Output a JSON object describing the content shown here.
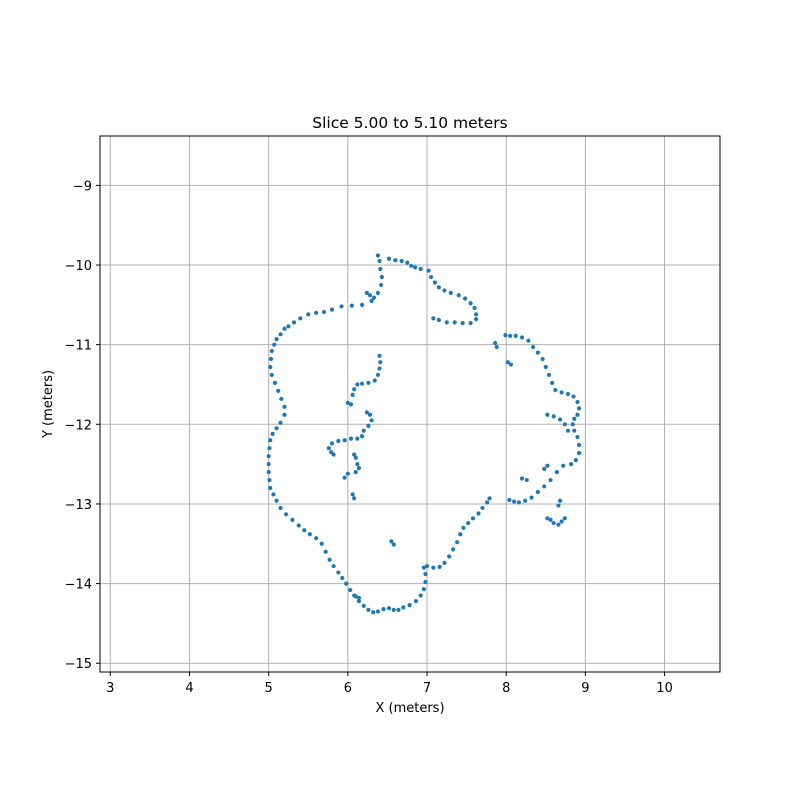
{
  "chart_data": {
    "type": "scatter",
    "title": "Slice 5.00 to 5.10 meters",
    "xlabel": "X (meters)",
    "ylabel": "Y (meters)",
    "xlim": [
      2.87,
      10.7
    ],
    "ylim": [
      -15.11,
      -8.38
    ],
    "xticks": [
      3,
      4,
      5,
      6,
      7,
      8,
      9,
      10
    ],
    "yticks": [
      -15,
      -14,
      -13,
      -12,
      -11,
      -10,
      -9
    ],
    "grid": true,
    "marker_color": "#1f77b4",
    "grid_color": "#b0b0b0",
    "series": [
      {
        "points": [
          [
            6.38,
            -9.88
          ],
          [
            6.4,
            -9.95
          ],
          [
            6.41,
            -10.05
          ],
          [
            6.43,
            -10.15
          ],
          [
            6.42,
            -10.25
          ],
          [
            6.38,
            -10.35
          ],
          [
            6.3,
            -10.45
          ],
          [
            6.18,
            -10.5
          ],
          [
            6.05,
            -10.51
          ],
          [
            5.92,
            -10.52
          ],
          [
            5.8,
            -10.56
          ],
          [
            5.7,
            -10.59
          ],
          [
            5.6,
            -10.6
          ],
          [
            5.5,
            -10.62
          ],
          [
            5.4,
            -10.67
          ],
          [
            5.32,
            -10.72
          ],
          [
            5.25,
            -10.77
          ],
          [
            5.2,
            -10.8
          ],
          [
            5.15,
            -10.87
          ],
          [
            5.1,
            -10.93
          ],
          [
            5.07,
            -11.0
          ],
          [
            5.04,
            -11.08
          ],
          [
            5.03,
            -11.18
          ],
          [
            5.02,
            -11.28
          ],
          [
            5.04,
            -11.38
          ],
          [
            5.08,
            -11.48
          ],
          [
            5.12,
            -11.58
          ],
          [
            5.16,
            -11.68
          ],
          [
            5.2,
            -11.78
          ],
          [
            5.2,
            -11.88
          ],
          [
            5.15,
            -11.98
          ],
          [
            5.1,
            -12.05
          ],
          [
            5.05,
            -12.12
          ],
          [
            5.02,
            -12.2
          ],
          [
            5.01,
            -12.3
          ],
          [
            5.0,
            -12.4
          ],
          [
            5.0,
            -12.5
          ],
          [
            5.0,
            -12.6
          ],
          [
            5.01,
            -12.7
          ],
          [
            5.02,
            -12.8
          ],
          [
            5.06,
            -12.88
          ],
          [
            5.1,
            -12.96
          ],
          [
            5.15,
            -13.05
          ],
          [
            5.22,
            -13.13
          ],
          [
            5.3,
            -13.2
          ],
          [
            5.38,
            -13.27
          ],
          [
            5.45,
            -13.33
          ],
          [
            5.52,
            -13.38
          ],
          [
            5.6,
            -13.43
          ],
          [
            5.67,
            -13.5
          ],
          [
            5.72,
            -13.6
          ],
          [
            5.77,
            -13.7
          ],
          [
            5.82,
            -13.78
          ],
          [
            5.88,
            -13.86
          ],
          [
            5.93,
            -13.93
          ],
          [
            5.98,
            -14.0
          ],
          [
            6.03,
            -14.08
          ],
          [
            6.08,
            -14.15
          ],
          [
            6.14,
            -14.22
          ],
          [
            6.2,
            -14.28
          ],
          [
            6.26,
            -14.33
          ],
          [
            6.32,
            -14.36
          ],
          [
            6.38,
            -14.35
          ],
          [
            6.45,
            -14.32
          ],
          [
            6.52,
            -14.31
          ],
          [
            6.58,
            -14.33
          ],
          [
            6.64,
            -14.33
          ],
          [
            6.7,
            -14.3
          ],
          [
            6.78,
            -14.27
          ],
          [
            6.86,
            -14.22
          ],
          [
            6.92,
            -14.15
          ],
          [
            6.96,
            -14.07
          ],
          [
            6.98,
            -13.98
          ],
          [
            6.98,
            -13.88
          ],
          [
            6.96,
            -13.8
          ],
          [
            6.52,
            -9.92
          ],
          [
            6.6,
            -9.94
          ],
          [
            6.68,
            -9.95
          ],
          [
            6.75,
            -9.97
          ],
          [
            6.8,
            -10.01
          ],
          [
            6.85,
            -10.03
          ],
          [
            6.92,
            -10.05
          ],
          [
            7.02,
            -10.07
          ],
          [
            7.05,
            -10.15
          ],
          [
            7.1,
            -10.22
          ],
          [
            7.15,
            -10.28
          ],
          [
            7.22,
            -10.32
          ],
          [
            7.3,
            -10.35
          ],
          [
            7.4,
            -10.38
          ],
          [
            7.48,
            -10.42
          ],
          [
            7.55,
            -10.48
          ],
          [
            7.6,
            -10.54
          ],
          [
            7.62,
            -10.62
          ],
          [
            7.62,
            -10.68
          ],
          [
            7.55,
            -10.73
          ],
          [
            7.45,
            -10.73
          ],
          [
            7.35,
            -10.72
          ],
          [
            7.25,
            -10.72
          ],
          [
            7.15,
            -10.69
          ],
          [
            7.08,
            -10.67
          ],
          [
            6.24,
            -10.35
          ],
          [
            6.28,
            -10.38
          ],
          [
            6.33,
            -10.41
          ],
          [
            7.0,
            -13.78
          ],
          [
            7.08,
            -13.8
          ],
          [
            7.16,
            -13.79
          ],
          [
            7.22,
            -13.74
          ],
          [
            7.28,
            -13.66
          ],
          [
            7.33,
            -13.57
          ],
          [
            7.38,
            -13.48
          ],
          [
            7.42,
            -13.38
          ],
          [
            7.46,
            -13.3
          ],
          [
            7.52,
            -13.24
          ],
          [
            7.58,
            -13.18
          ],
          [
            7.65,
            -13.12
          ],
          [
            7.7,
            -13.05
          ],
          [
            7.76,
            -12.98
          ],
          [
            7.79,
            -12.93
          ],
          [
            6.55,
            -13.47
          ],
          [
            6.58,
            -13.51
          ],
          [
            7.99,
            -10.88
          ],
          [
            8.05,
            -10.89
          ],
          [
            8.12,
            -10.89
          ],
          [
            8.2,
            -10.91
          ],
          [
            8.28,
            -10.95
          ],
          [
            8.34,
            -11.03
          ],
          [
            8.4,
            -11.1
          ],
          [
            8.46,
            -11.18
          ],
          [
            8.5,
            -11.28
          ],
          [
            8.54,
            -11.38
          ],
          [
            8.58,
            -11.48
          ],
          [
            8.62,
            -11.57
          ],
          [
            8.7,
            -11.6
          ],
          [
            8.78,
            -11.62
          ],
          [
            8.85,
            -11.65
          ],
          [
            8.9,
            -11.72
          ],
          [
            8.92,
            -11.8
          ],
          [
            8.9,
            -11.88
          ],
          [
            8.86,
            -11.93
          ],
          [
            8.84,
            -12.0
          ],
          [
            8.86,
            -12.08
          ],
          [
            8.9,
            -12.16
          ],
          [
            8.92,
            -12.26
          ],
          [
            8.92,
            -12.36
          ],
          [
            8.88,
            -12.45
          ],
          [
            8.82,
            -12.5
          ],
          [
            8.72,
            -12.52
          ],
          [
            8.64,
            -12.6
          ],
          [
            8.56,
            -12.7
          ],
          [
            8.48,
            -12.78
          ],
          [
            8.4,
            -12.85
          ],
          [
            8.32,
            -12.92
          ],
          [
            8.24,
            -12.96
          ],
          [
            8.16,
            -12.98
          ],
          [
            8.1,
            -12.97
          ],
          [
            8.04,
            -12.95
          ],
          [
            8.52,
            -11.88
          ],
          [
            8.6,
            -11.9
          ],
          [
            8.68,
            -11.94
          ],
          [
            8.74,
            -12.0
          ],
          [
            8.78,
            -12.08
          ],
          [
            7.86,
            -10.98
          ],
          [
            7.88,
            -11.03
          ],
          [
            8.02,
            -11.22
          ],
          [
            8.06,
            -11.25
          ],
          [
            8.52,
            -13.18
          ],
          [
            8.56,
            -13.2
          ],
          [
            8.6,
            -13.24
          ],
          [
            8.66,
            -13.26
          ],
          [
            8.7,
            -13.22
          ],
          [
            8.74,
            -13.18
          ],
          [
            8.52,
            -12.52
          ],
          [
            8.48,
            -12.56
          ],
          [
            8.2,
            -12.68
          ],
          [
            8.26,
            -12.7
          ],
          [
            8.68,
            -12.96
          ],
          [
            8.66,
            -13.02
          ],
          [
            6.4,
            -11.14
          ],
          [
            6.41,
            -11.22
          ],
          [
            6.4,
            -11.3
          ],
          [
            6.38,
            -11.38
          ],
          [
            6.34,
            -11.45
          ],
          [
            6.26,
            -11.48
          ],
          [
            6.18,
            -11.49
          ],
          [
            6.12,
            -11.5
          ],
          [
            6.08,
            -11.56
          ],
          [
            6.06,
            -11.63
          ],
          [
            6.0,
            -11.73
          ],
          [
            6.04,
            -11.75
          ],
          [
            6.24,
            -11.85
          ],
          [
            6.28,
            -11.88
          ],
          [
            6.3,
            -11.95
          ],
          [
            6.26,
            -12.02
          ],
          [
            6.2,
            -12.08
          ],
          [
            6.18,
            -12.15
          ],
          [
            6.12,
            -12.18
          ],
          [
            6.04,
            -12.18
          ],
          [
            5.96,
            -12.2
          ],
          [
            5.88,
            -12.21
          ],
          [
            5.8,
            -12.24
          ],
          [
            5.76,
            -12.3
          ],
          [
            5.79,
            -12.35
          ],
          [
            5.82,
            -12.38
          ],
          [
            6.08,
            -12.38
          ],
          [
            6.1,
            -12.42
          ],
          [
            6.12,
            -12.5
          ],
          [
            6.14,
            -12.55
          ],
          [
            6.1,
            -12.6
          ],
          [
            6.0,
            -12.62
          ],
          [
            5.96,
            -12.67
          ],
          [
            6.06,
            -12.88
          ],
          [
            6.08,
            -12.93
          ],
          [
            6.1,
            -14.16
          ],
          [
            6.14,
            -14.18
          ]
        ]
      }
    ]
  }
}
